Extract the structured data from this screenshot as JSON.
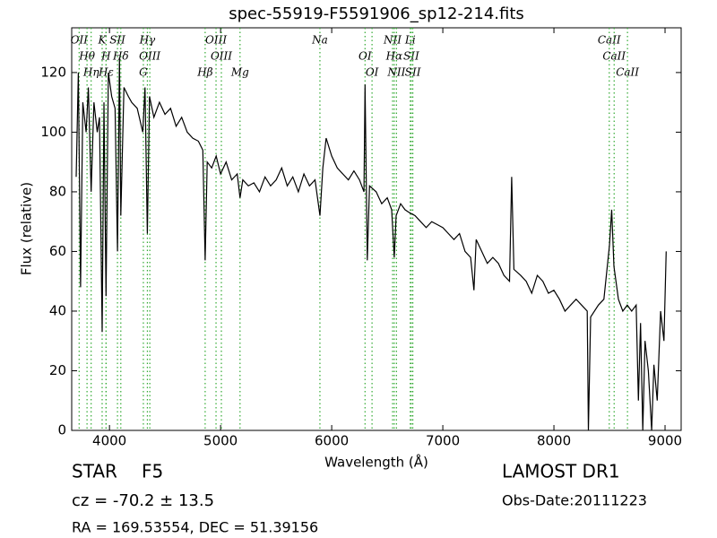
{
  "chart_data": {
    "type": "line",
    "title": "spec-55919-F5591906_sp12-214.fits",
    "xlabel": "Wavelength (Å)",
    "ylabel": "Flux (relative)",
    "xlim": [
      3660,
      9145
    ],
    "ylim": [
      0,
      135
    ],
    "xticks": [
      4000,
      5000,
      6000,
      7000,
      8000,
      9000
    ],
    "yticks": [
      0,
      20,
      40,
      60,
      80,
      100,
      120
    ],
    "color": "#000000",
    "line_color": "#33aa33",
    "x": [
      3700,
      3720,
      3740,
      3760,
      3790,
      3810,
      3835,
      3860,
      3890,
      3910,
      3934,
      3950,
      3969,
      3990,
      4020,
      4050,
      4072,
      4090,
      4102,
      4130,
      4170,
      4200,
      4250,
      4300,
      4320,
      4341,
      4360,
      4400,
      4450,
      4500,
      4550,
      4600,
      4650,
      4700,
      4750,
      4800,
      4840,
      4861,
      4880,
      4920,
      4960,
      5000,
      5050,
      5100,
      5150,
      5175,
      5200,
      5250,
      5300,
      5350,
      5400,
      5450,
      5500,
      5550,
      5600,
      5650,
      5700,
      5750,
      5800,
      5850,
      5894,
      5920,
      5950,
      6000,
      6050,
      6100,
      6150,
      6200,
      6250,
      6290,
      6300,
      6320,
      6340,
      6400,
      6450,
      6500,
      6540,
      6563,
      6580,
      6620,
      6660,
      6700,
      6750,
      6800,
      6850,
      6900,
      6950,
      7000,
      7050,
      7100,
      7150,
      7200,
      7250,
      7280,
      7300,
      7350,
      7400,
      7450,
      7500,
      7550,
      7600,
      7620,
      7640,
      7700,
      7750,
      7800,
      7850,
      7900,
      7950,
      8000,
      8050,
      8100,
      8150,
      8200,
      8250,
      8300,
      8310,
      8330,
      8400,
      8450,
      8500,
      8520,
      8540,
      8580,
      8620,
      8660,
      8700,
      8740,
      8760,
      8780,
      8800,
      8820,
      8850,
      8880,
      8900,
      8930,
      8960,
      8990,
      9010
    ],
    "values": [
      85,
      120,
      48,
      110,
      100,
      115,
      80,
      110,
      100,
      105,
      33,
      110,
      45,
      120,
      112,
      108,
      60,
      125,
      72,
      115,
      112,
      110,
      108,
      100,
      115,
      66,
      112,
      105,
      110,
      106,
      108,
      102,
      105,
      100,
      98,
      97,
      94,
      57,
      90,
      88,
      92,
      86,
      90,
      84,
      86,
      78,
      84,
      82,
      83,
      80,
      85,
      82,
      84,
      88,
      82,
      85,
      80,
      86,
      82,
      84,
      72,
      88,
      98,
      92,
      88,
      86,
      84,
      87,
      84,
      80,
      116,
      57,
      82,
      80,
      76,
      78,
      74,
      58,
      72,
      76,
      74,
      73,
      72,
      70,
      68,
      70,
      69,
      68,
      66,
      64,
      66,
      60,
      58,
      47,
      64,
      60,
      56,
      58,
      56,
      52,
      50,
      85,
      54,
      52,
      50,
      46,
      52,
      50,
      46,
      47,
      44,
      40,
      42,
      44,
      42,
      40,
      0,
      38,
      42,
      44,
      62,
      74,
      55,
      44,
      40,
      42,
      40,
      42,
      10,
      36,
      0,
      30,
      20,
      0,
      22,
      10,
      40,
      30,
      60
    ],
    "lines": [
      {
        "label": "OII",
        "wavelength": 3727
      },
      {
        "label": "Hθ",
        "wavelength": 3798
      },
      {
        "label": "Hη",
        "wavelength": 3835
      },
      {
        "label": "K",
        "wavelength": 3934
      },
      {
        "label": "H",
        "wavelength": 3969
      },
      {
        "label": "Hε",
        "wavelength": 3970
      },
      {
        "label": "SII",
        "wavelength": 4072
      },
      {
        "label": "Hδ",
        "wavelength": 4102
      },
      {
        "label": "G",
        "wavelength": 4305
      },
      {
        "label": "Hγ",
        "wavelength": 4341
      },
      {
        "label": "OIII",
        "wavelength": 4363
      },
      {
        "label": "Hβ",
        "wavelength": 4861
      },
      {
        "label": "OIII",
        "wavelength": 4959
      },
      {
        "label": "OIII",
        "wavelength": 5007
      },
      {
        "label": "Mg",
        "wavelength": 5175
      },
      {
        "label": "Na",
        "wavelength": 5894
      },
      {
        "label": "OI",
        "wavelength": 6300
      },
      {
        "label": "OI",
        "wavelength": 6363
      },
      {
        "label": "NII",
        "wavelength": 6548
      },
      {
        "label": "Hα",
        "wavelength": 6563
      },
      {
        "label": "NII",
        "wavelength": 6583
      },
      {
        "label": "Li",
        "wavelength": 6707
      },
      {
        "label": "SII",
        "wavelength": 6716
      },
      {
        "label": "SII",
        "wavelength": 6730
      },
      {
        "label": "CaII",
        "wavelength": 8498
      },
      {
        "label": "CaII",
        "wavelength": 8542
      },
      {
        "label": "CaII",
        "wavelength": 8662
      }
    ],
    "class": "STAR",
    "subclass": "F5",
    "redshift": "cz = -70.2 ± 13.5",
    "coords": "RA = 169.53554, DEC = 51.39156",
    "survey": "LAMOST DR1",
    "obs_date": "Obs-Date:20111223"
  }
}
